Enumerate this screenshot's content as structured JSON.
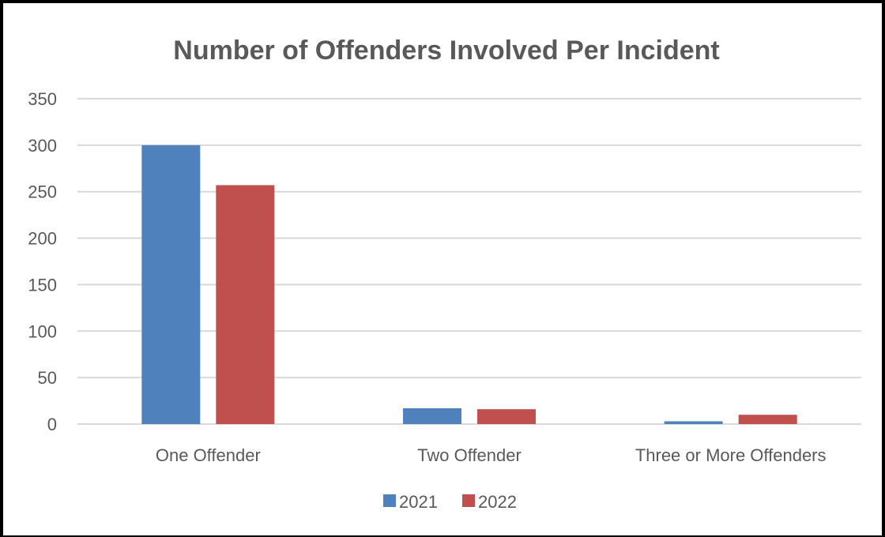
{
  "chart_data": {
    "type": "bar",
    "title": "Number of Offenders Involved Per Incident",
    "xlabel": "",
    "ylabel": "",
    "categories": [
      "One Offender",
      "Two Offender",
      "Three or More Offenders"
    ],
    "series": [
      {
        "name": "2021",
        "values": [
          300,
          17,
          3
        ],
        "color": "#4f81bd"
      },
      {
        "name": "2022",
        "values": [
          257,
          16,
          10
        ],
        "color": "#c0504d"
      }
    ],
    "ylim": [
      0,
      350
    ],
    "yticks": [
      0,
      50,
      100,
      150,
      200,
      250,
      300,
      350
    ],
    "grid": true,
    "legend": "bottom",
    "gridline_color": "#d9d9d9",
    "text_color": "#595959"
  }
}
